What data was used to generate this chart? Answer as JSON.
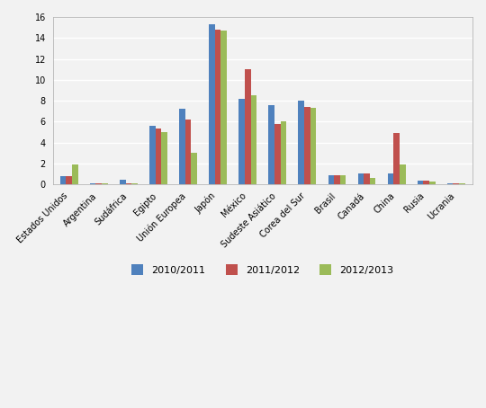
{
  "categories": [
    "Estados Unidos",
    "Argentina",
    "Sudáfrica",
    "Egipto",
    "Unión Europea",
    "Japón",
    "México",
    "Sudeste Asiático",
    "Corea del Sur",
    "Brasil",
    "Canadá",
    "China",
    "Rusia",
    "Ucrania"
  ],
  "series": {
    "2010/2011": [
      0.8,
      0.1,
      0.45,
      5.6,
      7.2,
      15.3,
      8.2,
      7.6,
      8.0,
      0.9,
      1.0,
      1.0,
      0.35,
      0.1
    ],
    "2011/2012": [
      0.8,
      0.1,
      0.05,
      5.3,
      6.2,
      14.8,
      11.0,
      5.8,
      7.4,
      0.9,
      1.0,
      4.9,
      0.35,
      0.1
    ],
    "2012/2013": [
      1.9,
      0.1,
      0.05,
      5.0,
      3.0,
      14.7,
      8.5,
      6.0,
      7.3,
      0.9,
      0.6,
      1.9,
      0.25,
      0.1
    ]
  },
  "colors": {
    "2010/2011": "#4F81BD",
    "2011/2012": "#C0504D",
    "2012/2013": "#9BBB59"
  },
  "ylim": [
    0,
    16
  ],
  "yticks": [
    0,
    2,
    4,
    6,
    8,
    10,
    12,
    14,
    16
  ],
  "bar_width": 0.2,
  "legend_labels": [
    "2010/2011",
    "2011/2012",
    "2012/2013"
  ],
  "background_color": "#F2F2F2",
  "plot_bg_color": "#F2F2F2",
  "grid_color": "#FFFFFF",
  "tick_fontsize": 7,
  "legend_fontsize": 8,
  "figsize": [
    5.4,
    4.54
  ],
  "dpi": 100
}
